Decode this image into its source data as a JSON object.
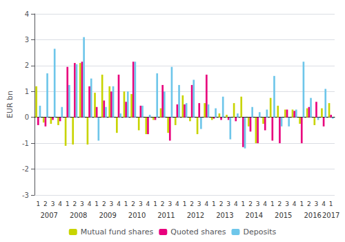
{
  "chart_data": {
    "type": "bar",
    "categories": [
      "1",
      "2",
      "3",
      "4",
      "1",
      "2",
      "3",
      "4",
      "1",
      "2",
      "3",
      "4",
      "1",
      "2",
      "3",
      "4",
      "1",
      "2",
      "3",
      "4",
      "1",
      "2",
      "3",
      "4",
      "1",
      "2",
      "3",
      "4",
      "1",
      "2",
      "3",
      "4",
      "1",
      "2",
      "3",
      "4",
      "1",
      "2",
      "3",
      "4",
      "1"
    ],
    "annotations": [
      "2007",
      "2008",
      "2009",
      "2010",
      "2011",
      "2012",
      "2013",
      "2014",
      "2015",
      "2016",
      "2017"
    ],
    "series": [
      {
        "name": "Mutual fund shares",
        "color": "#c8d400",
        "values": [
          1.2,
          -0.2,
          -0.25,
          -0.3,
          -1.1,
          -1.05,
          2.1,
          -1.05,
          0.95,
          1.65,
          1.2,
          -0.6,
          1.0,
          0.9,
          -0.5,
          -0.65,
          -0.1,
          0.35,
          -0.6,
          -0.3,
          0.85,
          -0.15,
          -0.65,
          0.55,
          -0.1,
          0.15,
          0.1,
          0.55,
          0.8,
          -0.35,
          -1.0,
          -0.25,
          0.75,
          0.45,
          0.3,
          0.3,
          -0.25,
          0.35,
          -0.3,
          0.35,
          0.55
        ]
      },
      {
        "name": "Quoted shares",
        "color": "#e8007d",
        "values": [
          -0.3,
          -0.35,
          -0.1,
          -0.15,
          1.95,
          2.1,
          2.15,
          1.2,
          0.4,
          0.65,
          1.0,
          1.65,
          0.6,
          2.15,
          0.45,
          -0.65,
          -0.1,
          1.25,
          -0.9,
          0.5,
          0.5,
          1.25,
          0.55,
          1.65,
          -0.05,
          -0.1,
          -0.1,
          -0.15,
          -1.15,
          -0.55,
          -1.0,
          -0.5,
          -0.9,
          -1.0,
          0.3,
          0.25,
          -1.0,
          0.4,
          0.6,
          -0.35,
          0.1
        ]
      },
      {
        "name": "Deposits",
        "color": "#6ec6ea",
        "values": [
          0.45,
          1.7,
          2.65,
          0.4,
          1.25,
          2.05,
          3.1,
          1.5,
          -0.9,
          0.4,
          1.2,
          0.15,
          1.0,
          2.15,
          0.45,
          0.1,
          1.7,
          1.0,
          1.95,
          1.25,
          0.55,
          1.45,
          -0.45,
          0.5,
          0.35,
          0.8,
          -0.85,
          0.15,
          -1.2,
          0.4,
          0.2,
          0.3,
          1.6,
          -0.35,
          -0.35,
          0.3,
          2.15,
          0.75,
          -0.1,
          1.1,
          -0.05
        ]
      }
    ],
    "ylabel": "EUR bn",
    "ylim": [
      -3,
      4
    ],
    "yticks": [
      -3,
      -2,
      -1,
      0,
      1,
      2,
      3,
      4
    ],
    "grid": true,
    "legend": "bottom"
  }
}
